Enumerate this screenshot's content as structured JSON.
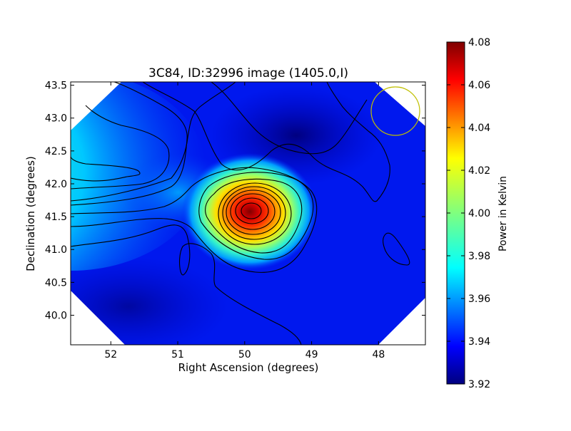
{
  "chart_data": {
    "type": "heatmap",
    "title": "3C84, ID:32996 image (1405.0,I)",
    "xlabel": "Right Ascension (degrees)",
    "ylabel": "Declination (degrees)",
    "xlim": [
      52.6,
      47.3
    ],
    "ylim": [
      39.55,
      43.55
    ],
    "x_inverted": true,
    "x_ticks": [
      52,
      51,
      50,
      49,
      48
    ],
    "y_ticks": [
      40.0,
      40.5,
      41.0,
      41.5,
      42.0,
      42.5,
      43.0,
      43.5
    ],
    "colormap": "jet",
    "colorbar": {
      "label": "Power in Kelvin",
      "range": [
        3.92,
        4.08
      ],
      "ticks": [
        3.92,
        3.94,
        3.96,
        3.98,
        4.0,
        4.02,
        4.04,
        4.06,
        4.08
      ]
    },
    "background_level": 3.935,
    "sources": [
      {
        "ra": 49.95,
        "dec": 41.53,
        "peak": 4.078,
        "sigma_ra": 0.3,
        "sigma_dec": 0.23,
        "note": "main peak (3C84)"
      },
      {
        "ra": 52.4,
        "dec": 42.12,
        "peak": 4.0,
        "note": "bright region at left edge"
      },
      {
        "ra": 51.2,
        "dec": 41.75,
        "peak": 3.955,
        "note": "bridge toward left edge"
      },
      {
        "ra": 49.1,
        "dec": 42.65,
        "peak": 3.928,
        "note": "minimum / dark patch"
      }
    ],
    "contour_levels_K": [
      3.93,
      3.94,
      3.95,
      3.96,
      3.97,
      3.98,
      3.99,
      4.0,
      4.01,
      4.02,
      4.03,
      4.04,
      4.05,
      4.06
    ],
    "beam_circle": {
      "ra": 47.65,
      "dec": 43.05,
      "radius_deg": 0.37,
      "color": "#bfbf00"
    }
  }
}
